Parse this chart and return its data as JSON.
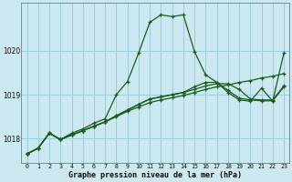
{
  "title": "Graphe pression niveau de la mer (hPa)",
  "background_color": "#cce8f0",
  "grid_color": "#99ccd9",
  "line_color": "#1a5c1a",
  "xlim": [
    -0.5,
    23.5
  ],
  "ylim": [
    1017.45,
    1021.1
  ],
  "yticks": [
    1018,
    1019,
    1020
  ],
  "series": [
    [
      1017.65,
      1017.78,
      1018.12,
      1017.98,
      1018.12,
      1018.22,
      1018.35,
      1018.45,
      1019.0,
      1019.3,
      1019.95,
      1020.65,
      1020.82,
      1020.78,
      1020.82,
      1019.98,
      1019.45,
      1019.28,
      1019.05,
      1018.88,
      1018.85,
      1019.15,
      1018.85,
      1019.95
    ],
    [
      1017.65,
      1017.78,
      1018.12,
      1017.98,
      1018.08,
      1018.18,
      1018.28,
      1018.38,
      1018.5,
      1018.62,
      1018.72,
      1018.82,
      1018.88,
      1018.93,
      1018.98,
      1019.05,
      1019.12,
      1019.18,
      1019.22,
      1019.28,
      1019.32,
      1019.38,
      1019.42,
      1019.48
    ],
    [
      1017.65,
      1017.78,
      1018.12,
      1017.98,
      1018.08,
      1018.18,
      1018.28,
      1018.38,
      1018.52,
      1018.65,
      1018.78,
      1018.9,
      1018.95,
      1019.0,
      1019.05,
      1019.12,
      1019.2,
      1019.25,
      1019.25,
      1019.12,
      1018.9,
      1018.88,
      1018.88,
      1019.2
    ],
    [
      1017.65,
      1017.78,
      1018.12,
      1017.98,
      1018.08,
      1018.18,
      1018.28,
      1018.38,
      1018.52,
      1018.65,
      1018.78,
      1018.9,
      1018.95,
      1019.0,
      1019.05,
      1019.18,
      1019.28,
      1019.28,
      1019.1,
      1018.92,
      1018.88,
      1018.86,
      1018.86,
      1019.18
    ]
  ]
}
